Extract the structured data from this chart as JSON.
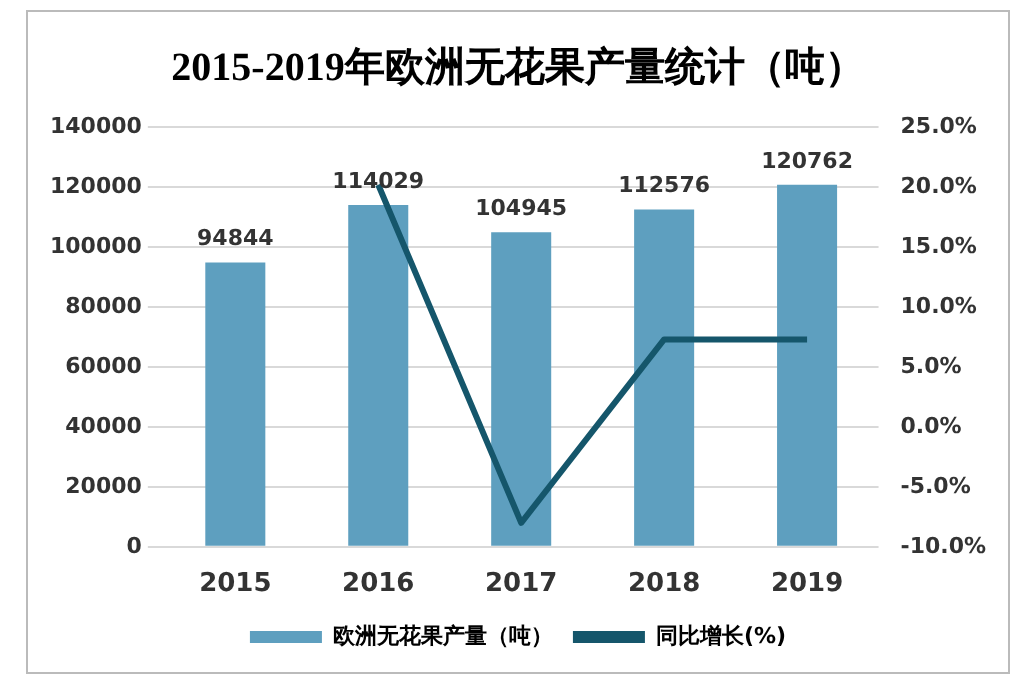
{
  "chart_data": {
    "type": "bar",
    "title": "2015-2019年欧洲无花果产量统计（吨）",
    "categories": [
      "2015",
      "2016",
      "2017",
      "2018",
      "2019"
    ],
    "series": [
      {
        "name": "欧洲无花果产量（吨）",
        "color": "#5e9fbf",
        "values": [
          94844,
          114029,
          104945,
          112576,
          120762
        ],
        "data_labels": true
      },
      {
        "name": "同比增长(%)",
        "type": "line",
        "axis": "y2",
        "color": "#15566b",
        "values": [
          null,
          20.2,
          -8.0,
          7.3,
          7.3
        ],
        "marker": "none"
      }
    ],
    "ylim": [
      0,
      140000
    ],
    "yticks": [
      0,
      20000,
      40000,
      60000,
      80000,
      100000,
      120000,
      140000
    ],
    "y2lim": [
      -10,
      25
    ],
    "y2ticks": [
      {
        "value": -10,
        "label": "-10.0%"
      },
      {
        "value": -5,
        "label": "-5.0%"
      },
      {
        "value": 0,
        "label": "0.0%"
      },
      {
        "value": 5,
        "label": "5.0%"
      },
      {
        "value": 10,
        "label": "10.0%"
      },
      {
        "value": 15,
        "label": "15.0%"
      },
      {
        "value": 20,
        "label": "20.0%"
      },
      {
        "value": 25,
        "label": "25.0%"
      }
    ],
    "grid": "y",
    "legend": "bottom"
  }
}
